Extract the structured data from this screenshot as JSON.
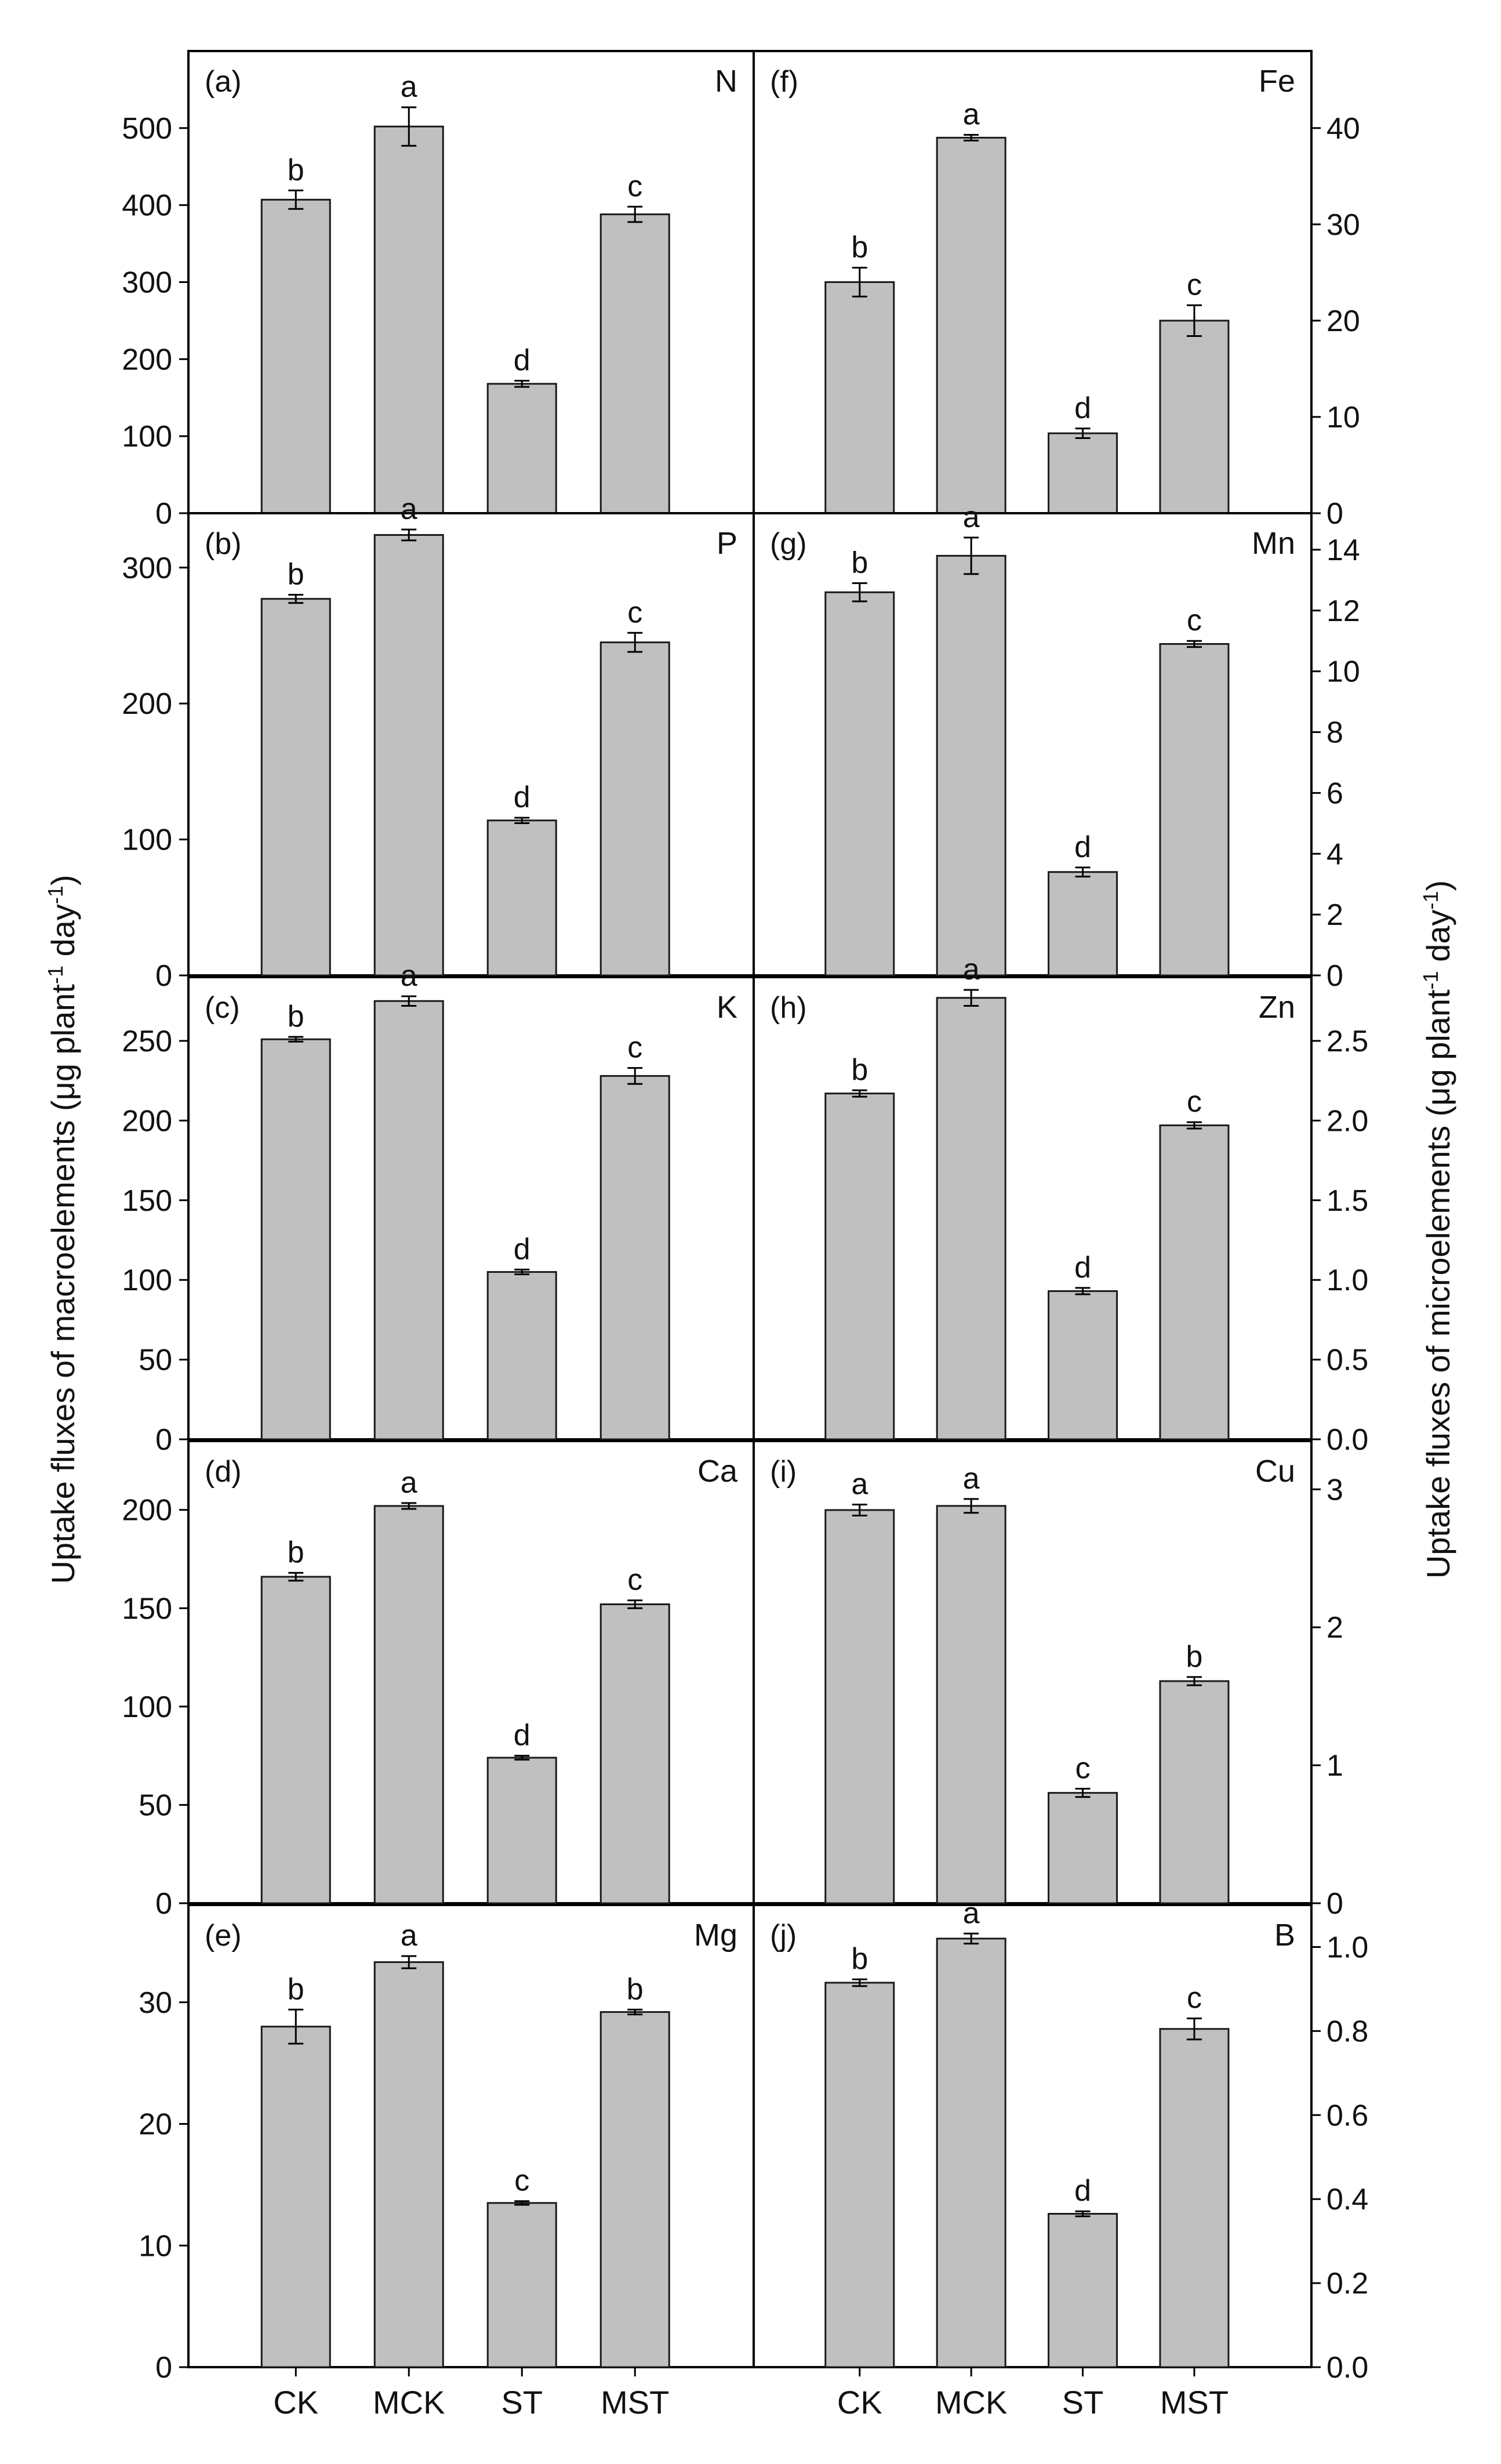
{
  "chart_data": {
    "type": "bar",
    "categories": [
      "CK",
      "MCK",
      "ST",
      "MST"
    ],
    "left_axis_label": "Uptake fluxes of macroelements (μg plant<sup>-1</sup> day<sup>-1</sup>)",
    "left_axis_label_parts": [
      "Uptake fluxes of macroelements (μg plant",
      "-1",
      " day",
      "-1",
      ")"
    ],
    "right_axis_label_parts": [
      "Uptake fluxes of microelements (μg plant",
      "-1",
      " day",
      "-1",
      ")"
    ],
    "colors": {
      "bar_fill": "#c0c0c0",
      "bar_stroke": "#1a1a1a",
      "axis": "#000000"
    },
    "panels": [
      {
        "id": "a",
        "label": "(a)",
        "element": "N",
        "side": "left",
        "ylim": [
          0,
          600
        ],
        "ticks": [
          0,
          100,
          200,
          300,
          400,
          500
        ],
        "tick_labels": [
          "0",
          "100",
          "200",
          "300",
          "400",
          "500"
        ],
        "values": [
          407,
          502,
          168,
          388
        ],
        "errors": [
          12,
          25,
          4,
          10
        ],
        "letters": [
          "b",
          "a",
          "d",
          "c"
        ]
      },
      {
        "id": "b",
        "label": "(b)",
        "element": "P",
        "side": "left",
        "ylim": [
          0,
          340
        ],
        "ticks": [
          0,
          100,
          200,
          300
        ],
        "tick_labels": [
          "0",
          "100",
          "200",
          "300"
        ],
        "values": [
          277,
          324,
          114,
          245
        ],
        "errors": [
          3,
          4,
          2,
          7
        ],
        "letters": [
          "b",
          "a",
          "d",
          "c"
        ]
      },
      {
        "id": "c",
        "label": "(c)",
        "element": "K",
        "side": "left",
        "ylim": [
          0,
          290
        ],
        "ticks": [
          0,
          50,
          100,
          150,
          200,
          250
        ],
        "tick_labels": [
          "0",
          "50",
          "100",
          "150",
          "200",
          "250"
        ],
        "values": [
          251,
          275,
          105,
          228
        ],
        "errors": [
          1.5,
          3,
          1.5,
          5
        ],
        "letters": [
          "b",
          "a",
          "d",
          "c"
        ]
      },
      {
        "id": "d",
        "label": "(d)",
        "element": "Ca",
        "side": "left",
        "ylim": [
          0,
          235
        ],
        "ticks": [
          0,
          50,
          100,
          150,
          200
        ],
        "tick_labels": [
          "0",
          "50",
          "100",
          "150",
          "200"
        ],
        "values": [
          166,
          202,
          74,
          152
        ],
        "errors": [
          2,
          1.5,
          1,
          2
        ],
        "letters": [
          "b",
          "a",
          "d",
          "c"
        ]
      },
      {
        "id": "e",
        "label": "(e)",
        "element": "Mg",
        "side": "left",
        "ylim": [
          0,
          38
        ],
        "ticks": [
          0,
          10,
          20,
          30
        ],
        "tick_labels": [
          "0",
          "10",
          "20",
          "30"
        ],
        "values": [
          28,
          33.3,
          13.5,
          29.2
        ],
        "errors": [
          1.4,
          0.5,
          0.15,
          0.2
        ],
        "letters": [
          "b",
          "a",
          "c",
          "b"
        ]
      },
      {
        "id": "f",
        "label": "(f)",
        "element": "Fe",
        "side": "right",
        "ylim": [
          0,
          48
        ],
        "ticks": [
          0,
          10,
          20,
          30,
          40
        ],
        "tick_labels": [
          "0",
          "10",
          "20",
          "30",
          "40"
        ],
        "values": [
          24,
          39,
          8.3,
          20
        ],
        "errors": [
          1.5,
          0.3,
          0.5,
          1.6
        ],
        "letters": [
          "b",
          "a",
          "d",
          "c"
        ]
      },
      {
        "id": "g",
        "label": "(g)",
        "element": "Mn",
        "side": "right",
        "ylim": [
          0,
          15.2
        ],
        "ticks": [
          0,
          2,
          4,
          6,
          8,
          10,
          12,
          14
        ],
        "tick_labels": [
          "0",
          "2",
          "4",
          "6",
          "8",
          "10",
          "12",
          "14"
        ],
        "values": [
          12.6,
          13.8,
          3.4,
          10.9
        ],
        "errors": [
          0.3,
          0.6,
          0.15,
          0.1
        ],
        "letters": [
          "b",
          "a",
          "d",
          "c"
        ]
      },
      {
        "id": "h",
        "label": "(h)",
        "element": "Zn",
        "side": "right",
        "ylim": [
          0,
          2.9
        ],
        "ticks": [
          0,
          0.5,
          1.0,
          1.5,
          2.0,
          2.5
        ],
        "tick_labels": [
          "0.0",
          "0.5",
          "1.0",
          "1.5",
          "2.0",
          "2.5"
        ],
        "values": [
          2.17,
          2.77,
          0.93,
          1.97
        ],
        "errors": [
          0.02,
          0.05,
          0.02,
          0.02
        ],
        "letters": [
          "b",
          "a",
          "d",
          "c"
        ]
      },
      {
        "id": "i",
        "label": "(i)",
        "element": "Cu",
        "side": "right",
        "ylim": [
          0,
          3.35
        ],
        "ticks": [
          0,
          1,
          2,
          3
        ],
        "tick_labels": [
          "0",
          "1",
          "2",
          "3"
        ],
        "values": [
          2.85,
          2.88,
          0.8,
          1.61
        ],
        "errors": [
          0.04,
          0.05,
          0.03,
          0.03
        ],
        "letters": [
          "a",
          "a",
          "c",
          "b"
        ]
      },
      {
        "id": "j",
        "label": "(j)",
        "element": "B",
        "side": "right",
        "ylim": [
          0,
          1.1
        ],
        "ticks": [
          0,
          0.2,
          0.4,
          0.6,
          0.8,
          1.0
        ],
        "tick_labels": [
          "0.0",
          "0.2",
          "0.4",
          "0.6",
          "0.8",
          "1.0"
        ],
        "values": [
          0.915,
          1.02,
          0.365,
          0.805
        ],
        "errors": [
          0.008,
          0.012,
          0.006,
          0.025
        ],
        "letters": [
          "b",
          "a",
          "d",
          "c"
        ]
      }
    ]
  }
}
